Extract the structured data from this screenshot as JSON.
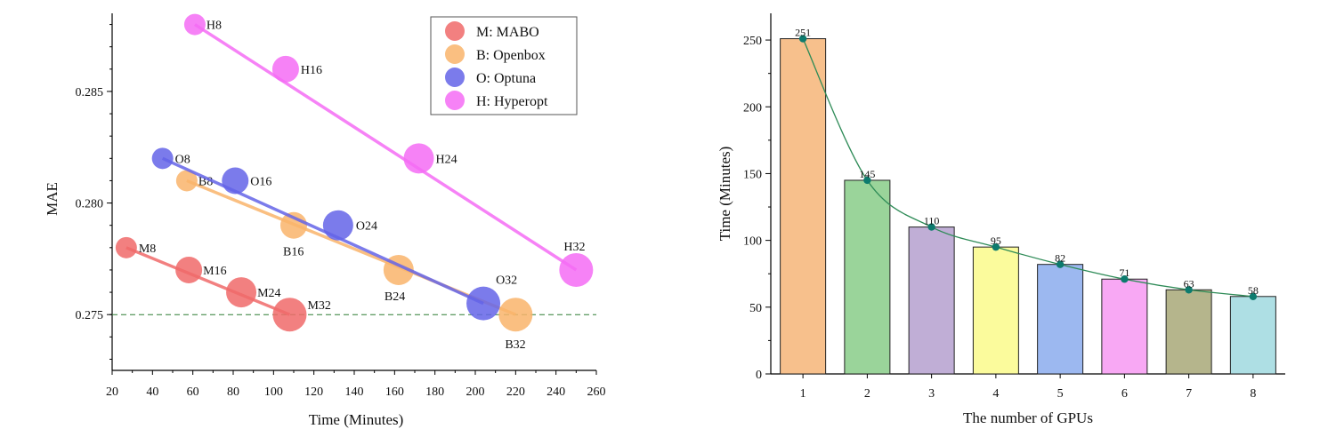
{
  "chart_data": [
    {
      "type": "scatter",
      "xlabel": "Time (Minutes)",
      "ylabel": "MAE",
      "xlim": [
        20,
        260
      ],
      "ylim": [
        0.2725,
        0.2885
      ],
      "xticks": [
        "20",
        "40",
        "60",
        "80",
        "100",
        "120",
        "140",
        "160",
        "180",
        "200",
        "220",
        "240",
        "260"
      ],
      "yticks": [
        "0.275",
        "0.280",
        "0.285"
      ],
      "reference_line_y": 0.275,
      "legend_position": "top-right",
      "series": [
        {
          "name": "M: MABO",
          "color": "#f06a6a",
          "points": [
            {
              "label": "M8",
              "x": 27,
              "y": 0.278
            },
            {
              "label": "M16",
              "x": 58,
              "y": 0.277
            },
            {
              "label": "M24",
              "x": 84,
              "y": 0.276
            },
            {
              "label": "M32",
              "x": 108,
              "y": 0.275
            }
          ]
        },
        {
          "name": "B: Openbox",
          "color": "#f9b46b",
          "points": [
            {
              "label": "B8",
              "x": 57,
              "y": 0.281
            },
            {
              "label": "B16",
              "x": 110,
              "y": 0.279
            },
            {
              "label": "B24",
              "x": 162,
              "y": 0.277
            },
            {
              "label": "B32",
              "x": 220,
              "y": 0.275
            }
          ]
        },
        {
          "name": "O: Optuna",
          "color": "#6464e8",
          "points": [
            {
              "label": "O8",
              "x": 45,
              "y": 0.282
            },
            {
              "label": "O16",
              "x": 81,
              "y": 0.281
            },
            {
              "label": "O24",
              "x": 132,
              "y": 0.279
            },
            {
              "label": "O32",
              "x": 204,
              "y": 0.2755
            }
          ]
        },
        {
          "name": "H: Hyperopt",
          "color": "#f46cf4",
          "points": [
            {
              "label": "H8",
              "x": 61,
              "y": 0.288
            },
            {
              "label": "H16",
              "x": 106,
              "y": 0.286
            },
            {
              "label": "H24",
              "x": 172,
              "y": 0.282
            },
            {
              "label": "H32",
              "x": 250,
              "y": 0.277
            }
          ]
        }
      ]
    },
    {
      "type": "bar",
      "xlabel": "The number of GPUs",
      "ylabel": "Time (Minutes)",
      "ylim": [
        0,
        270
      ],
      "yticks": [
        "0",
        "50",
        "100",
        "150",
        "200",
        "250"
      ],
      "categories": [
        "1",
        "2",
        "3",
        "4",
        "5",
        "6",
        "7",
        "8"
      ],
      "values": [
        251,
        145,
        110,
        95,
        82,
        71,
        63,
        58
      ],
      "value_labels": [
        "251",
        "145",
        "110",
        "95",
        "82",
        "71",
        "63",
        "58"
      ],
      "bar_colors": [
        "#f7c08c",
        "#9ad49a",
        "#c0aed6",
        "#fbfb9c",
        "#9cb8f0",
        "#f8a8f4",
        "#b5b58c",
        "#aedfe4"
      ],
      "line_color": "#2e8b57",
      "marker_color": "#0d7b6e"
    }
  ]
}
